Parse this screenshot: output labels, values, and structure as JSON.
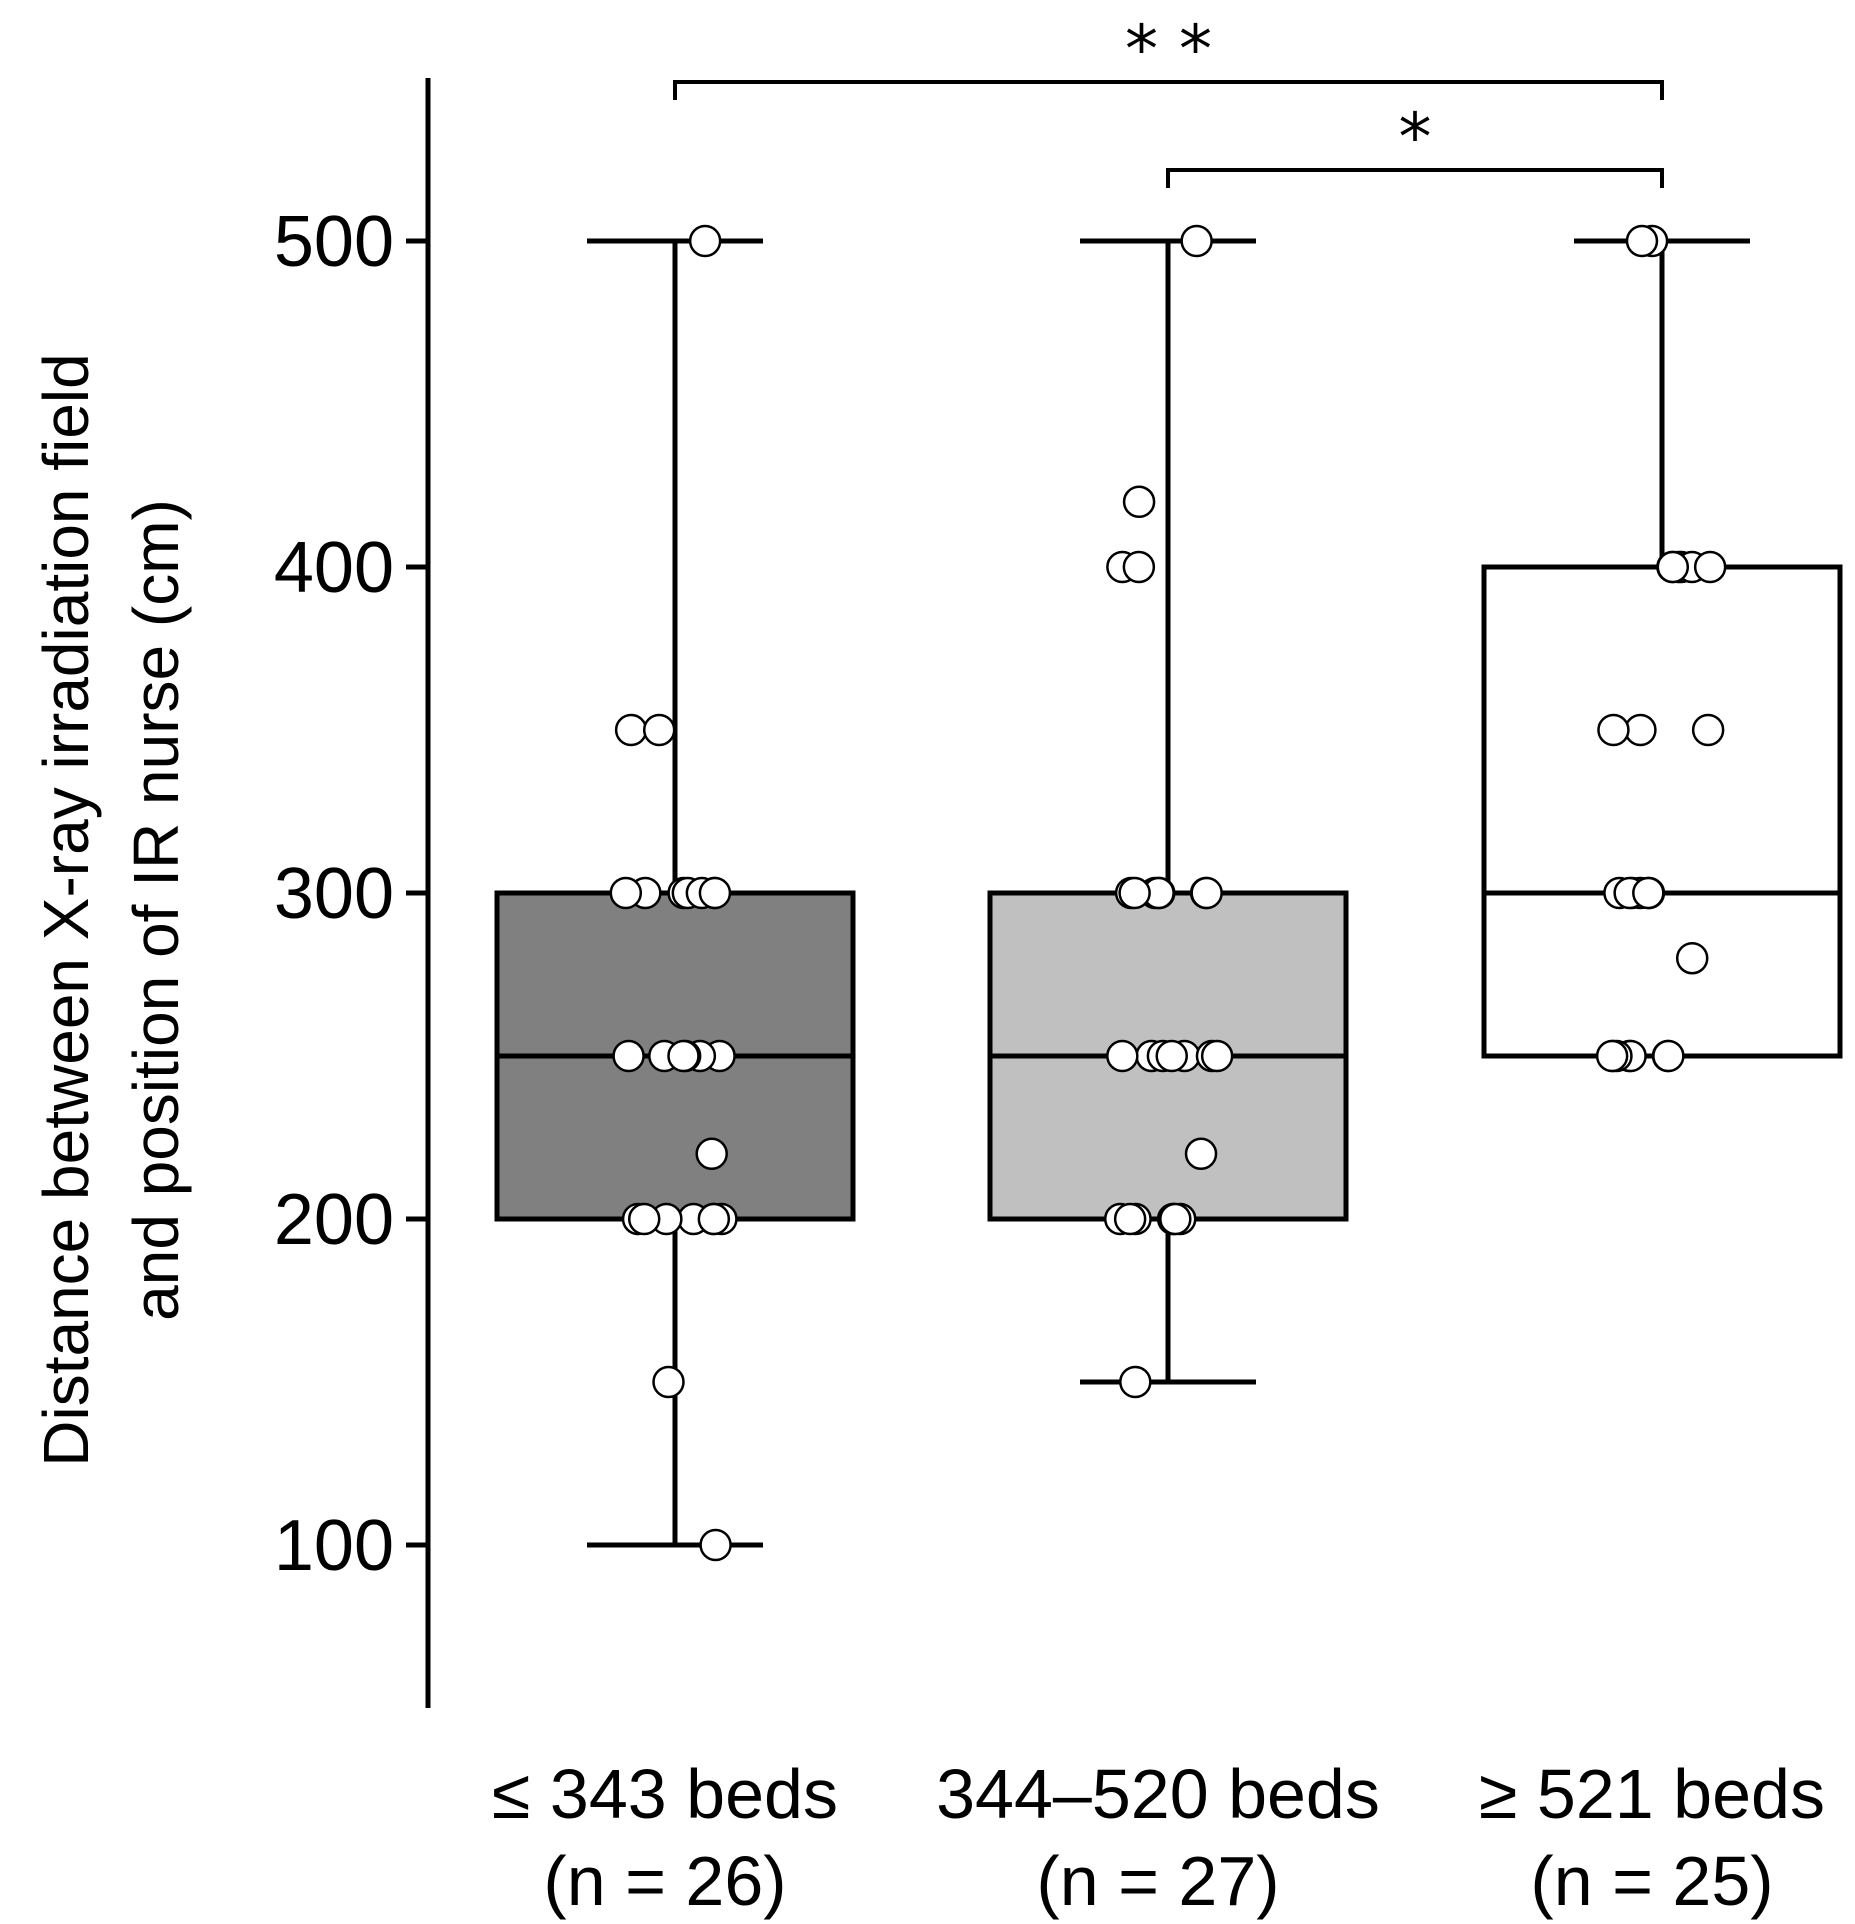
{
  "chart_data": {
    "type": "box",
    "ylabel_lines": [
      "Distance between X-ray irradiation field",
      "and position of IR nurse (cm)"
    ],
    "ylim": [
      50,
      550
    ],
    "yticks": [
      100,
      200,
      300,
      400,
      500
    ],
    "grid": false,
    "legend": "none",
    "groups": [
      {
        "label": "≤ 343 beds",
        "n_label": "(n = 26)",
        "fill": "#808080",
        "min": 100,
        "q1": 200,
        "median": 250,
        "q3": 300,
        "max": 500,
        "points": [
          500,
          350,
          350,
          300,
          300,
          300,
          300,
          300,
          250,
          250,
          250,
          250,
          220,
          200,
          200,
          200,
          200,
          200,
          200,
          150,
          100,
          300,
          250,
          200,
          300,
          250
        ]
      },
      {
        "label": "344–520 beds",
        "n_label": "(n = 27)",
        "fill": "#c0c0c0",
        "min": 150,
        "q1": 200,
        "median": 250,
        "q3": 300,
        "max": 500,
        "points": [
          500,
          420,
          400,
          400,
          300,
          300,
          300,
          300,
          300,
          250,
          250,
          250,
          250,
          250,
          220,
          200,
          200,
          200,
          200,
          200,
          150,
          300,
          250,
          200,
          300,
          250,
          200
        ]
      },
      {
        "label": "≥ 521 beds",
        "n_label": "(n = 25)",
        "fill": "#ffffff",
        "min": 250,
        "q1": 250,
        "median": 300,
        "q3": 400,
        "max": 500,
        "points": [
          500,
          500,
          400,
          400,
          400,
          400,
          400,
          350,
          350,
          300,
          300,
          300,
          300,
          280,
          250,
          250,
          250,
          250,
          250,
          250,
          300,
          400,
          350,
          300,
          250
        ]
      }
    ],
    "annotations": [
      {
        "from": 0,
        "to": 2,
        "text": "* *"
      },
      {
        "from": 1,
        "to": 2,
        "text": "*"
      }
    ]
  }
}
